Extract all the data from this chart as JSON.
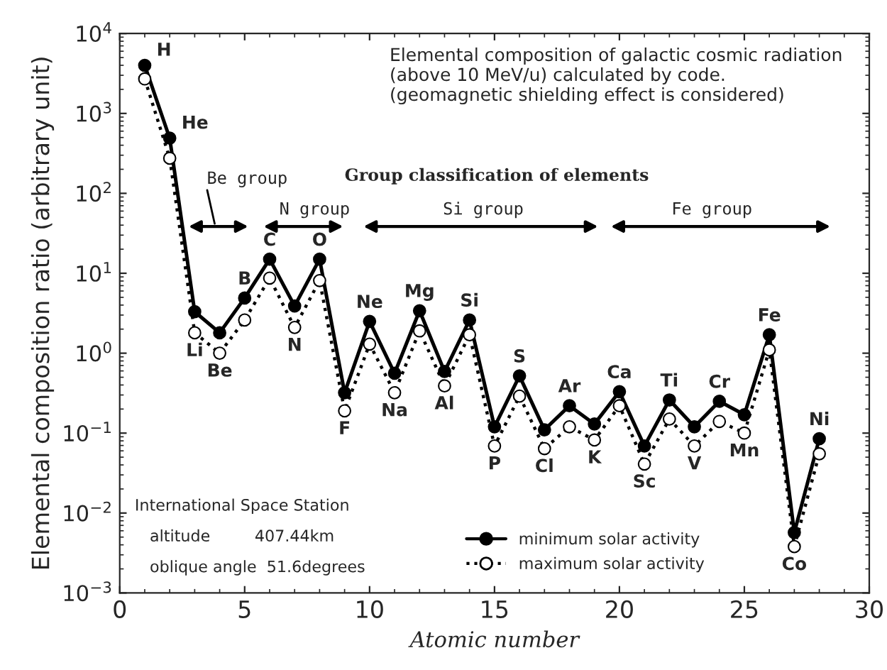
{
  "chart_data": {
    "type": "line",
    "xlabel": "Atomic number",
    "ylabel": "Elemental composition ratio (arbitrary unit)",
    "x": [
      1,
      2,
      3,
      4,
      5,
      6,
      7,
      8,
      9,
      10,
      11,
      12,
      13,
      14,
      15,
      16,
      17,
      18,
      19,
      20,
      21,
      22,
      23,
      24,
      25,
      26,
      27,
      28
    ],
    "series": [
      {
        "name": "minimum solar activity",
        "color": "#000000",
        "line_style": "solid",
        "values": [
          4000,
          490,
          3.3,
          1.8,
          4.9,
          15,
          3.9,
          15,
          0.32,
          2.5,
          0.56,
          3.4,
          0.59,
          2.6,
          0.12,
          0.52,
          0.11,
          0.22,
          0.13,
          0.33,
          0.069,
          0.26,
          0.12,
          0.25,
          0.17,
          1.7,
          0.0057,
          0.085
        ]
      },
      {
        "name": "maximum solar activity",
        "color": "#000000",
        "line_style": "dotted",
        "values": [
          2700,
          275,
          1.8,
          1.0,
          2.6,
          8.7,
          2.1,
          8.1,
          0.19,
          1.3,
          0.32,
          1.9,
          0.39,
          1.7,
          0.069,
          0.29,
          0.064,
          0.12,
          0.082,
          0.22,
          0.041,
          0.15,
          0.069,
          0.14,
          0.1,
          1.1,
          0.0038,
          0.055
        ]
      }
    ],
    "marker": "circle",
    "log": "y",
    "grid": false,
    "legend": "bottom",
    "xlim": [
      0,
      30
    ],
    "xticks": [
      0,
      5,
      10,
      15,
      20,
      25,
      30
    ],
    "ylim": [
      0.001,
      10000
    ],
    "yticks": [
      {
        "value": 0.001,
        "label": "10$^{−3}$"
      },
      {
        "value": 0.01,
        "label": "10$^{−2}$"
      },
      {
        "value": 0.1,
        "label": "10$^{−1}$"
      },
      {
        "value": 1,
        "label": "10$^{0}$"
      },
      {
        "value": 10,
        "label": "10$^{1}$"
      },
      {
        "value": 100,
        "label": "10$^{2}$"
      },
      {
        "value": 1000,
        "label": "10$^{3}$"
      },
      {
        "value": 10000,
        "label": "10$^{4}$"
      }
    ],
    "annotations": [
      "Elemental composition of galactic cosmic radiation\n(above 10 MeV/u) calculated by code.\n(geomagnetic shielding effect is considered)",
      "Group classification of elements",
      "Be group",
      "N group",
      "Si group",
      "Fe group",
      "International Space Station",
      "altitude",
      "407.44km",
      "oblique angle  51.6degrees",
      {
        "text": "H",
        "x": 1,
        "y": 4000
      },
      {
        "text": "He",
        "x": 2,
        "y": 490
      },
      {
        "text": "Li",
        "x": 3,
        "y": 1.8
      },
      {
        "text": "Be",
        "x": 4,
        "y": 1.0
      },
      {
        "text": "B",
        "x": 5,
        "y": 4.9
      },
      {
        "text": "C",
        "x": 6,
        "y": 15
      },
      {
        "text": "N",
        "x": 7,
        "y": 2.1
      },
      {
        "text": "O",
        "x": 8,
        "y": 15
      },
      {
        "text": "F",
        "x": 9,
        "y": 0.19
      },
      {
        "text": "Ne",
        "x": 10,
        "y": 2.5
      },
      {
        "text": "Na",
        "x": 11,
        "y": 0.32
      },
      {
        "text": "Mg",
        "x": 12,
        "y": 3.4
      },
      {
        "text": "Al",
        "x": 13,
        "y": 0.39
      },
      {
        "text": "Si",
        "x": 14,
        "y": 2.6
      },
      {
        "text": "P",
        "x": 15,
        "y": 0.069
      },
      {
        "text": "S",
        "x": 16,
        "y": 0.52
      },
      {
        "text": "Cl",
        "x": 17,
        "y": 0.064
      },
      {
        "text": "Ar",
        "x": 18,
        "y": 0.22
      },
      {
        "text": "K",
        "x": 19,
        "y": 0.082
      },
      {
        "text": "Ca",
        "x": 20,
        "y": 0.33
      },
      {
        "text": "Sc",
        "x": 21,
        "y": 0.041
      },
      {
        "text": "Ti",
        "x": 22,
        "y": 0.26
      },
      {
        "text": "V",
        "x": 23,
        "y": 0.069
      },
      {
        "text": "Cr",
        "x": 24,
        "y": 0.25
      },
      {
        "text": "Mn",
        "x": 25,
        "y": 0.1
      },
      {
        "text": "Fe",
        "x": 26,
        "y": 1.7
      },
      {
        "text": "Co",
        "x": 27,
        "y": 0.0038
      },
      {
        "text": "Ni",
        "x": 28,
        "y": 0.085
      }
    ]
  }
}
